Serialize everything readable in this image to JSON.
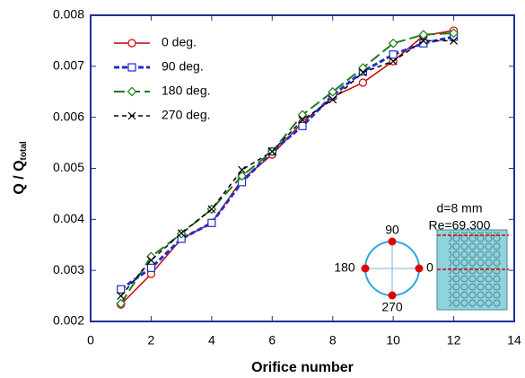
{
  "chart_data": {
    "type": "line",
    "x_label": "Orifice number",
    "y_label": "Q / Q",
    "y_label_subscript": "total",
    "x": [
      1,
      2,
      3,
      4,
      5,
      6,
      7,
      8,
      9,
      10,
      11,
      12
    ],
    "series": [
      {
        "name": "0 deg.",
        "color": "#cc0000",
        "marker": "circle",
        "dash": "",
        "width": 1.5,
        "values": [
          0.00233,
          0.00293,
          0.00362,
          0.00393,
          0.00478,
          0.00527,
          0.0059,
          0.0064,
          0.00668,
          0.0071,
          0.0076,
          0.0077
        ]
      },
      {
        "name": "90 deg.",
        "color": "#1f2fcc",
        "marker": "square",
        "dash": "6 3",
        "width": 3,
        "values": [
          0.00263,
          0.00305,
          0.00362,
          0.00393,
          0.00473,
          0.00533,
          0.00583,
          0.00643,
          0.0069,
          0.00723,
          0.00745,
          0.00758
        ]
      },
      {
        "name": "180 deg.",
        "color": "#1e7a1e",
        "marker": "diamond",
        "dash": "12 5",
        "width": 2,
        "values": [
          0.00235,
          0.00327,
          0.00372,
          0.0042,
          0.00485,
          0.00533,
          0.00605,
          0.0065,
          0.00697,
          0.00745,
          0.00762,
          0.00765
        ]
      },
      {
        "name": "270 deg.",
        "color": "#000000",
        "marker": "x",
        "dash": "5 4",
        "width": 1.5,
        "values": [
          0.0025,
          0.0032,
          0.00373,
          0.0042,
          0.00497,
          0.00533,
          0.00595,
          0.00635,
          0.00688,
          0.0071,
          0.0075,
          0.0075
        ]
      }
    ],
    "xlim": [
      0,
      14
    ],
    "xticks": [
      0,
      2,
      4,
      6,
      8,
      10,
      12,
      14
    ],
    "ylim": [
      0.002,
      0.008
    ],
    "yticks": [
      0.002,
      0.003,
      0.004,
      0.005,
      0.006,
      0.007,
      0.008
    ],
    "legend": "top-left",
    "annotations": [
      "d=8 mm",
      "Re=69,300"
    ],
    "inset_labels": [
      "90",
      "180",
      "0",
      "270"
    ]
  }
}
